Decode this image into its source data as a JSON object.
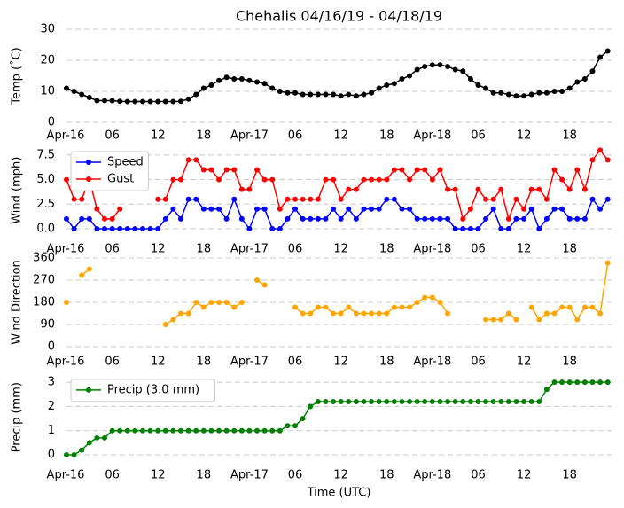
{
  "chart_data": [
    {
      "type": "line",
      "title": "Chehalis 04/16/19 - 04/18/19",
      "ylabel": "Temp ($^\\circ$C)",
      "x": [
        0,
        1,
        2,
        3,
        4,
        5,
        6,
        7,
        8,
        9,
        10,
        11,
        12,
        13,
        14,
        15,
        16,
        17,
        18,
        19,
        20,
        21,
        22,
        23,
        24,
        25,
        26,
        27,
        28,
        29,
        30,
        31,
        32,
        33,
        34,
        35,
        36,
        37,
        38,
        39,
        40,
        41,
        42,
        43,
        44,
        45,
        46,
        47,
        48,
        49,
        50,
        51,
        52,
        53,
        54,
        55,
        56,
        57,
        58,
        59,
        60,
        61,
        62,
        63,
        64,
        65,
        66,
        67,
        68,
        69,
        70,
        71
      ],
      "xlim": [
        0,
        71.5
      ],
      "xticks": [
        {
          "value": 0,
          "label": "Apr-16"
        },
        {
          "value": 6,
          "label": "06"
        },
        12,
        18,
        {
          "value": 24,
          "label": "Apr-17"
        },
        {
          "value": 30,
          "label": "06"
        },
        {
          "value": 36,
          "label": "12"
        },
        {
          "value": 42,
          "label": "18"
        },
        {
          "value": 48,
          "label": "Apr-18"
        },
        {
          "value": 54,
          "label": "06"
        },
        {
          "value": 60,
          "label": "12"
        },
        {
          "value": 66,
          "label": "18"
        }
      ],
      "ylim": [
        0,
        30
      ],
      "yticks": [
        0,
        10,
        20,
        30
      ],
      "grid": true,
      "series": [
        {
          "name": "Temp",
          "color": "#000000",
          "values": [
            11,
            10,
            9,
            8,
            7,
            7,
            7,
            6.8,
            6.7,
            6.7,
            6.7,
            6.7,
            6.7,
            6.7,
            6.7,
            6.8,
            7.5,
            9,
            11,
            12,
            13.5,
            14.5,
            14,
            14,
            13.5,
            13,
            12.5,
            11,
            10,
            9.5,
            9.5,
            9,
            9,
            9,
            9,
            9,
            8.5,
            9,
            8.5,
            9,
            9.5,
            11,
            12,
            12.5,
            14,
            15,
            17,
            18,
            18.5,
            18.5,
            18,
            17,
            16.5,
            14,
            12,
            11,
            9.5,
            9.5,
            9,
            8.5,
            8.5,
            9,
            9.5,
            9.5,
            10,
            10,
            11,
            13,
            14,
            16.5,
            21,
            23
          ]
        }
      ]
    },
    {
      "type": "line",
      "ylabel": "Wind (mph)",
      "x": [
        0,
        1,
        2,
        3,
        4,
        5,
        6,
        7,
        8,
        9,
        10,
        11,
        12,
        13,
        14,
        15,
        16,
        17,
        18,
        19,
        20,
        21,
        22,
        23,
        24,
        25,
        26,
        27,
        28,
        29,
        30,
        31,
        32,
        33,
        34,
        35,
        36,
        37,
        38,
        39,
        40,
        41,
        42,
        43,
        44,
        45,
        46,
        47,
        48,
        49,
        50,
        51,
        52,
        53,
        54,
        55,
        56,
        57,
        58,
        59,
        60,
        61,
        62,
        63,
        64,
        65,
        66,
        67,
        68,
        69,
        70,
        71
      ],
      "xlim": [
        0,
        71.5
      ],
      "xticks": [
        {
          "value": 0,
          "label": "Apr-16"
        },
        {
          "value": 6,
          "label": "06"
        },
        12,
        18,
        {
          "value": 24,
          "label": "Apr-17"
        },
        {
          "value": 30,
          "label": "06"
        },
        {
          "value": 36,
          "label": "12"
        },
        {
          "value": 42,
          "label": "18"
        },
        {
          "value": 48,
          "label": "Apr-18"
        },
        {
          "value": 54,
          "label": "06"
        },
        {
          "value": 60,
          "label": "12"
        },
        {
          "value": 66,
          "label": "18"
        }
      ],
      "ylim": [
        -0.5,
        8.3
      ],
      "yticks": [
        {
          "value": 0,
          "label": "0.0"
        },
        2.5,
        {
          "value": 5,
          "label": "5.0"
        },
        7.5
      ],
      "grid": true,
      "legend": "upper left",
      "series": [
        {
          "name": "Speed",
          "color": "#0000ff",
          "values": [
            1,
            0,
            1,
            1,
            0,
            0,
            0,
            0,
            0,
            0,
            0,
            0,
            0,
            1,
            2,
            1,
            3,
            3,
            2,
            2,
            2,
            1,
            3,
            1,
            0,
            2,
            2,
            0,
            0,
            1,
            2,
            1,
            1,
            1,
            1,
            2,
            1,
            2,
            1,
            2,
            2,
            2,
            3,
            3,
            2,
            2,
            1,
            1,
            1,
            1,
            1,
            0,
            0,
            0,
            0,
            1,
            2,
            0,
            0,
            1,
            1,
            2,
            0,
            1,
            2,
            2,
            1,
            1,
            1,
            3,
            2,
            3
          ]
        },
        {
          "name": "Gust",
          "color": "#ff0000",
          "values": [
            5,
            3,
            3,
            5,
            2,
            1,
            1,
            2,
            null,
            null,
            null,
            null,
            3,
            3,
            5,
            5,
            7,
            7,
            6,
            6,
            5,
            6,
            6,
            4,
            4,
            6,
            5,
            5,
            2,
            3,
            3,
            3,
            3,
            3,
            5,
            5,
            3,
            4,
            4,
            5,
            5,
            5,
            5,
            6,
            6,
            5,
            6,
            6,
            5,
            6,
            4,
            4,
            1,
            2,
            4,
            3,
            3,
            4,
            1,
            3,
            2,
            4,
            4,
            3,
            6,
            5,
            4,
            6,
            4,
            7,
            8,
            7
          ]
        }
      ]
    },
    {
      "type": "line",
      "ylabel": "Wind Direction",
      "x": [
        0,
        1,
        2,
        3,
        4,
        5,
        6,
        7,
        8,
        9,
        10,
        11,
        12,
        13,
        14,
        15,
        16,
        17,
        18,
        19,
        20,
        21,
        22,
        23,
        24,
        25,
        26,
        27,
        28,
        29,
        30,
        31,
        32,
        33,
        34,
        35,
        36,
        37,
        38,
        39,
        40,
        41,
        42,
        43,
        44,
        45,
        46,
        47,
        48,
        49,
        50,
        51,
        52,
        53,
        54,
        55,
        56,
        57,
        58,
        59,
        60,
        61,
        62,
        63,
        64,
        65,
        66,
        67,
        68,
        69,
        70,
        71
      ],
      "xlim": [
        0,
        71.5
      ],
      "xticks": [
        {
          "value": 0,
          "label": "Apr-16"
        },
        {
          "value": 6,
          "label": "06"
        },
        12,
        18,
        {
          "value": 24,
          "label": "Apr-17"
        },
        {
          "value": 30,
          "label": "06"
        },
        {
          "value": 36,
          "label": "12"
        },
        {
          "value": 42,
          "label": "18"
        },
        {
          "value": 48,
          "label": "Apr-18"
        },
        {
          "value": 54,
          "label": "06"
        },
        {
          "value": 60,
          "label": "12"
        },
        {
          "value": 66,
          "label": "18"
        }
      ],
      "ylim": [
        0,
        360
      ],
      "yticks": [
        0,
        90,
        180,
        270,
        360
      ],
      "grid": true,
      "series": [
        {
          "name": "Direction",
          "color": "#ffa500",
          "values": [
            180,
            null,
            290,
            315,
            null,
            null,
            null,
            null,
            null,
            null,
            null,
            null,
            null,
            90,
            110,
            135,
            135,
            180,
            160,
            180,
            180,
            180,
            160,
            180,
            null,
            270,
            250,
            null,
            null,
            null,
            160,
            135,
            135,
            160,
            160,
            135,
            135,
            160,
            135,
            135,
            135,
            135,
            135,
            160,
            160,
            160,
            180,
            200,
            200,
            180,
            135,
            null,
            null,
            null,
            null,
            110,
            110,
            110,
            135,
            110,
            null,
            160,
            110,
            135,
            135,
            160,
            160,
            110,
            160,
            160,
            135,
            340
          ]
        }
      ]
    },
    {
      "type": "line",
      "ylabel": "Precip (mm)",
      "xlabel": "Time (UTC)",
      "x": [
        0,
        1,
        2,
        3,
        4,
        5,
        6,
        7,
        8,
        9,
        10,
        11,
        12,
        13,
        14,
        15,
        16,
        17,
        18,
        19,
        20,
        21,
        22,
        23,
        24,
        25,
        26,
        27,
        28,
        29,
        30,
        31,
        32,
        33,
        34,
        35,
        36,
        37,
        38,
        39,
        40,
        41,
        42,
        43,
        44,
        45,
        46,
        47,
        48,
        49,
        50,
        51,
        52,
        53,
        54,
        55,
        56,
        57,
        58,
        59,
        60,
        61,
        62,
        63,
        64,
        65,
        66,
        67,
        68,
        69,
        70,
        71
      ],
      "xlim": [
        0,
        71.5
      ],
      "xticks": [
        {
          "value": 0,
          "label": "Apr-16"
        },
        {
          "value": 6,
          "label": "06"
        },
        12,
        18,
        {
          "value": 24,
          "label": "Apr-17"
        },
        {
          "value": 30,
          "label": "06"
        },
        {
          "value": 36,
          "label": "12"
        },
        {
          "value": 42,
          "label": "18"
        },
        {
          "value": 48,
          "label": "Apr-18"
        },
        {
          "value": 54,
          "label": "06"
        },
        {
          "value": 60,
          "label": "12"
        },
        {
          "value": 66,
          "label": "18"
        }
      ],
      "ylim": [
        -0.2,
        3.3
      ],
      "yticks": [
        0,
        1,
        2,
        3
      ],
      "grid": true,
      "legend": "upper left",
      "series": [
        {
          "name": "Precip (3.0 mm)",
          "color": "#008000",
          "values": [
            0,
            0,
            0.2,
            0.5,
            0.7,
            0.7,
            1,
            1,
            1,
            1,
            1,
            1,
            1,
            1,
            1,
            1,
            1,
            1,
            1,
            1,
            1,
            1,
            1,
            1,
            1,
            1,
            1,
            1,
            1,
            1.2,
            1.2,
            1.5,
            2,
            2.2,
            2.2,
            2.2,
            2.2,
            2.2,
            2.2,
            2.2,
            2.2,
            2.2,
            2.2,
            2.2,
            2.2,
            2.2,
            2.2,
            2.2,
            2.2,
            2.2,
            2.2,
            2.2,
            2.2,
            2.2,
            2.2,
            2.2,
            2.2,
            2.2,
            2.2,
            2.2,
            2.2,
            2.2,
            2.2,
            2.7,
            3,
            3,
            3,
            3,
            3,
            3,
            3,
            3
          ]
        }
      ]
    }
  ]
}
